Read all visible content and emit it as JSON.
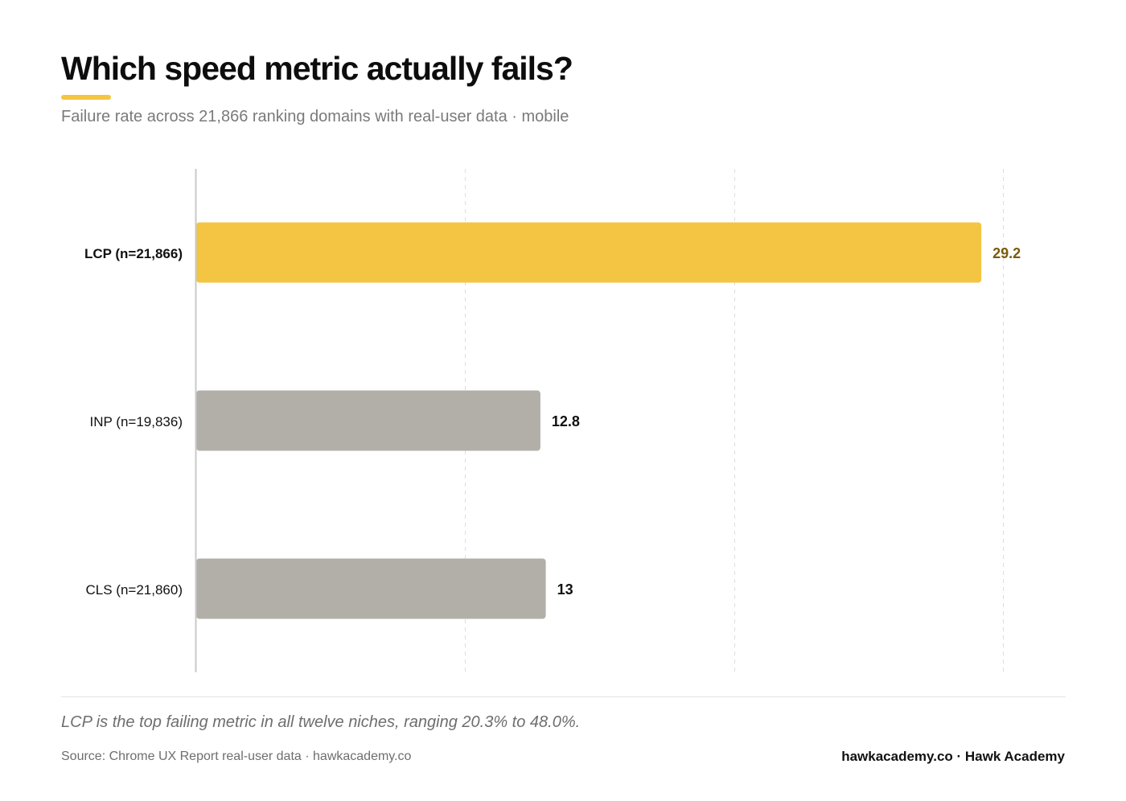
{
  "header": {
    "title": "Which speed metric actually fails?",
    "subtitle": "Failure rate across 21,866 ranking domains with real-user data · mobile"
  },
  "colors": {
    "accent": "#f4c542",
    "accent_label": "#7a5c0a",
    "neutral_bar": "#b2afa9",
    "axis": "#c9c9c9",
    "grid": "#dddddd"
  },
  "chart_data": {
    "type": "bar",
    "orientation": "horizontal",
    "categories": [
      "LCP (n=21,866)",
      "INP (n=19,836)",
      "CLS (n=21,860)"
    ],
    "values": [
      29.2,
      12.8,
      13
    ],
    "value_labels": [
      "29.2",
      "12.8",
      "13"
    ],
    "highlight_index": 0,
    "title": "",
    "xlabel": "",
    "ylabel": "",
    "xlim": [
      0,
      30
    ],
    "gridlines": [
      10,
      20,
      30
    ],
    "grid": true,
    "legend": "none"
  },
  "footer": {
    "note": "LCP is the top failing metric in all twelve niches, ranging 20.3% to 48.0%.",
    "source": "Source: Chrome UX Report real-user data · hawkacademy.co",
    "brand": "hawkacademy.co · Hawk Academy"
  }
}
